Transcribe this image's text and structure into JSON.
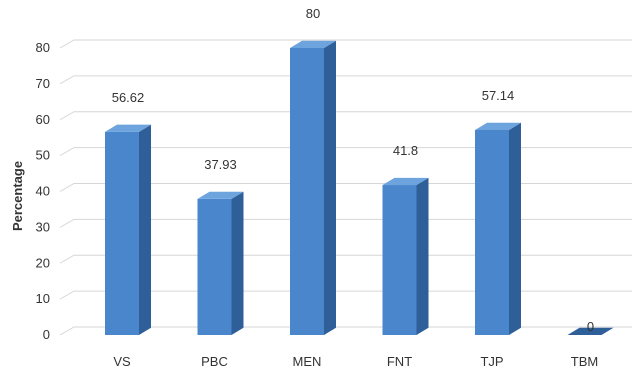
{
  "chart_data": {
    "type": "bar",
    "categories": [
      "VS",
      "PBC",
      "MEN",
      "FNT",
      "TJP",
      "TBM"
    ],
    "values": [
      56.62,
      37.93,
      80,
      41.8,
      57.14,
      0
    ],
    "data_labels": [
      "56.62",
      "37.93",
      "80",
      "41.8",
      "57.14",
      "0"
    ],
    "title": "",
    "xlabel": "",
    "ylabel": "Percentage",
    "ylim": [
      0,
      80
    ],
    "yticks": [
      0,
      10,
      20,
      30,
      40,
      50,
      60,
      70,
      80
    ],
    "grid": true,
    "style": "3d-column",
    "colors": {
      "bar_front": "#4a86cc",
      "bar_side": "#2f5f99",
      "bar_top": "#6ea4de",
      "grid": "#d6d6d6"
    }
  }
}
